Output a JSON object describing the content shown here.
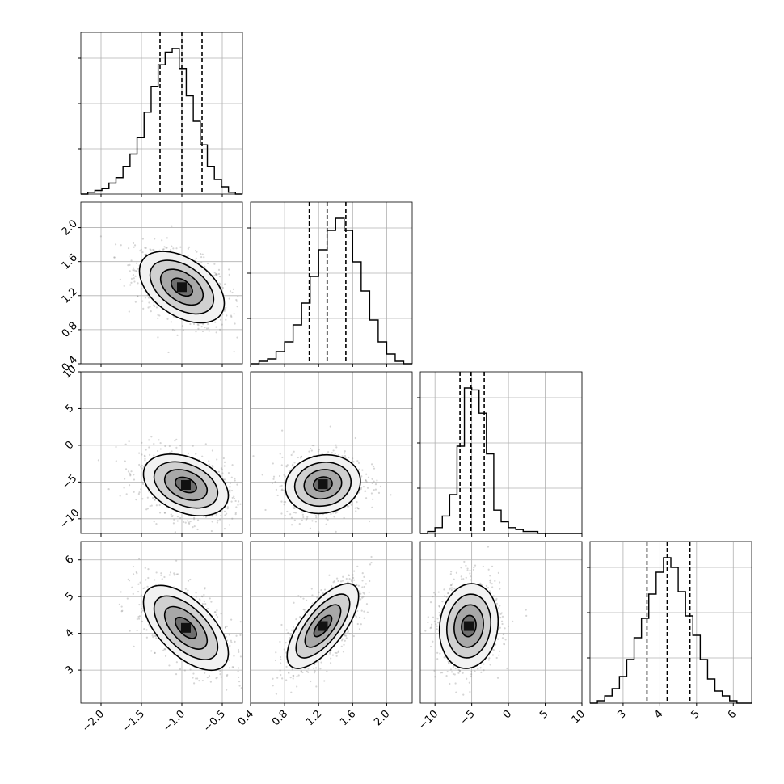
{
  "chart_data": {
    "type": "corner",
    "grid": true,
    "n_parameters": 4,
    "parameters": [
      {
        "name": "",
        "range": [
          -2.25,
          -0.25
        ],
        "tick_values": [
          -2.0,
          -1.5,
          -1.0,
          -0.5
        ],
        "tick_labels": [
          "−2.0",
          "−1.5",
          "−1.0",
          "−0.5"
        ],
        "quantiles": [
          -1.27,
          -1.0,
          -0.75
        ],
        "histogram": [
          0,
          1,
          2,
          3,
          6,
          9,
          15,
          22,
          31,
          45,
          59,
          71,
          78,
          80,
          69,
          54,
          40,
          27,
          15,
          8,
          4,
          1,
          0
        ]
      },
      {
        "name": "",
        "range": [
          0.4,
          2.3
        ],
        "tick_values": [
          0.4,
          0.8,
          1.2,
          1.6,
          2.0
        ],
        "tick_labels": [
          "0.4",
          "0.8",
          "1.2",
          "1.6",
          "2.0"
        ],
        "quantiles": [
          1.09,
          1.3,
          1.52
        ],
        "histogram": [
          0,
          1,
          2,
          5,
          9,
          16,
          25,
          36,
          47,
          55,
          60,
          55,
          42,
          30,
          18,
          9,
          4,
          1,
          0
        ]
      },
      {
        "name": "",
        "range": [
          -12,
          10
        ],
        "tick_values": [
          -10,
          -5,
          0,
          5,
          10
        ],
        "tick_labels": [
          "−10",
          "−5",
          "0",
          "5",
          "10"
        ],
        "quantiles": [
          -6.6,
          -5.1,
          -3.3
        ],
        "histogram": [
          0,
          1,
          3,
          9,
          20,
          45,
          75,
          74,
          62,
          41,
          12,
          6,
          3,
          2,
          1,
          1,
          0,
          0,
          0,
          0,
          0,
          0
        ]
      },
      {
        "name": "",
        "range": [
          2.1,
          6.5
        ],
        "tick_values": [
          3,
          4,
          5,
          6
        ],
        "tick_labels": [
          "3",
          "4",
          "5",
          "6"
        ],
        "quantiles": [
          3.65,
          4.2,
          4.82
        ],
        "histogram": [
          0,
          1,
          3,
          6,
          11,
          18,
          27,
          35,
          45,
          54,
          60,
          56,
          46,
          36,
          28,
          18,
          10,
          5,
          3,
          1,
          0,
          0
        ]
      }
    ],
    "pairs": [
      {
        "x": 0,
        "y": 1,
        "center": [
          -1.0,
          1.3
        ],
        "correlation": -0.45,
        "spread": [
          0.25,
          0.2
        ]
      },
      {
        "x": 0,
        "y": 2,
        "center": [
          -0.95,
          -5.4
        ],
        "correlation": -0.35,
        "spread": [
          0.25,
          2.0
        ]
      },
      {
        "x": 1,
        "y": 2,
        "center": [
          1.25,
          -5.3
        ],
        "correlation": 0.1,
        "spread": [
          0.21,
          1.9
        ]
      },
      {
        "x": 0,
        "y": 3,
        "center": [
          -0.95,
          4.15
        ],
        "correlation": -0.6,
        "spread": [
          0.25,
          0.55
        ]
      },
      {
        "x": 1,
        "y": 3,
        "center": [
          1.25,
          4.2
        ],
        "correlation": 0.7,
        "spread": [
          0.2,
          0.55
        ]
      },
      {
        "x": 2,
        "y": 3,
        "center": [
          -5.4,
          4.2
        ],
        "correlation": 0.1,
        "spread": [
          1.9,
          0.55
        ]
      }
    ],
    "contour_levels_sigma": [
      0.5,
      1.0,
      1.5,
      2.0
    ]
  }
}
